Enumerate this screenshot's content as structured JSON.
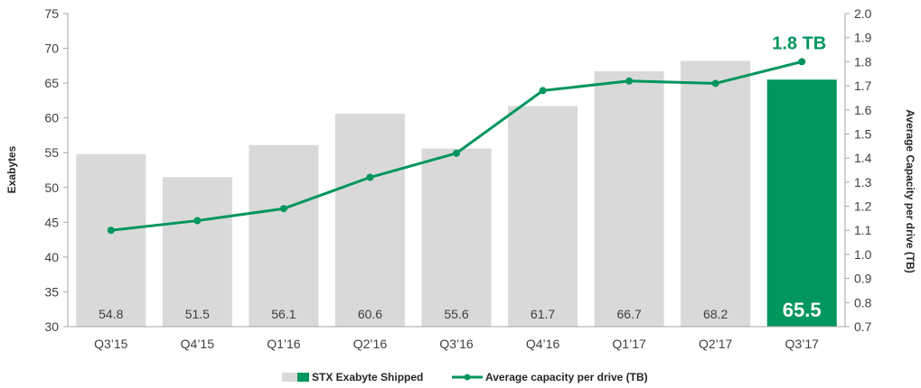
{
  "chart_data": {
    "type": "bar",
    "categories": [
      "Q3’15",
      "Q4’15",
      "Q1’16",
      "Q2’16",
      "Q3’16",
      "Q4’16",
      "Q1’17",
      "Q2’17",
      "Q3’17"
    ],
    "series": [
      {
        "name": "STX Exabyte Shipped",
        "type": "bar",
        "axis": "left",
        "values": [
          54.8,
          51.5,
          56.1,
          60.6,
          55.6,
          61.7,
          66.7,
          68.2,
          65.5
        ],
        "labels": [
          "54.8",
          "51.5",
          "56.1",
          "60.6",
          "55.6",
          "61.7",
          "66.7",
          "68.2",
          "65.5"
        ],
        "color": "#d9d9d9",
        "highlight_index": 8,
        "highlight_color": "#00965e"
      },
      {
        "name": "Average capacity per drive (TB)",
        "type": "line",
        "axis": "right",
        "values": [
          1.1,
          1.14,
          1.19,
          1.32,
          1.42,
          1.68,
          1.72,
          1.71,
          1.8
        ],
        "color": "#00965e"
      }
    ],
    "ylabel": "Exabytes",
    "y2label": "Average Capacity per drive (TB)",
    "ylim": [
      30,
      75
    ],
    "y_ticks": [
      "30",
      "35",
      "40",
      "45",
      "50",
      "55",
      "60",
      "65",
      "70",
      "75"
    ],
    "y2lim": [
      0.7,
      2.0
    ],
    "y2_ticks": [
      "0.7",
      "0.8",
      "0.9",
      "1.0",
      "1.1",
      "1.2",
      "1.3",
      "1.4",
      "1.5",
      "1.6",
      "1.7",
      "1.8",
      "1.9",
      "2.0"
    ],
    "annotation": {
      "text": "1.8 TB",
      "series": 1,
      "index": 8,
      "color": "#00965e"
    },
    "legend": {
      "position": "bottom"
    },
    "grid": false
  }
}
